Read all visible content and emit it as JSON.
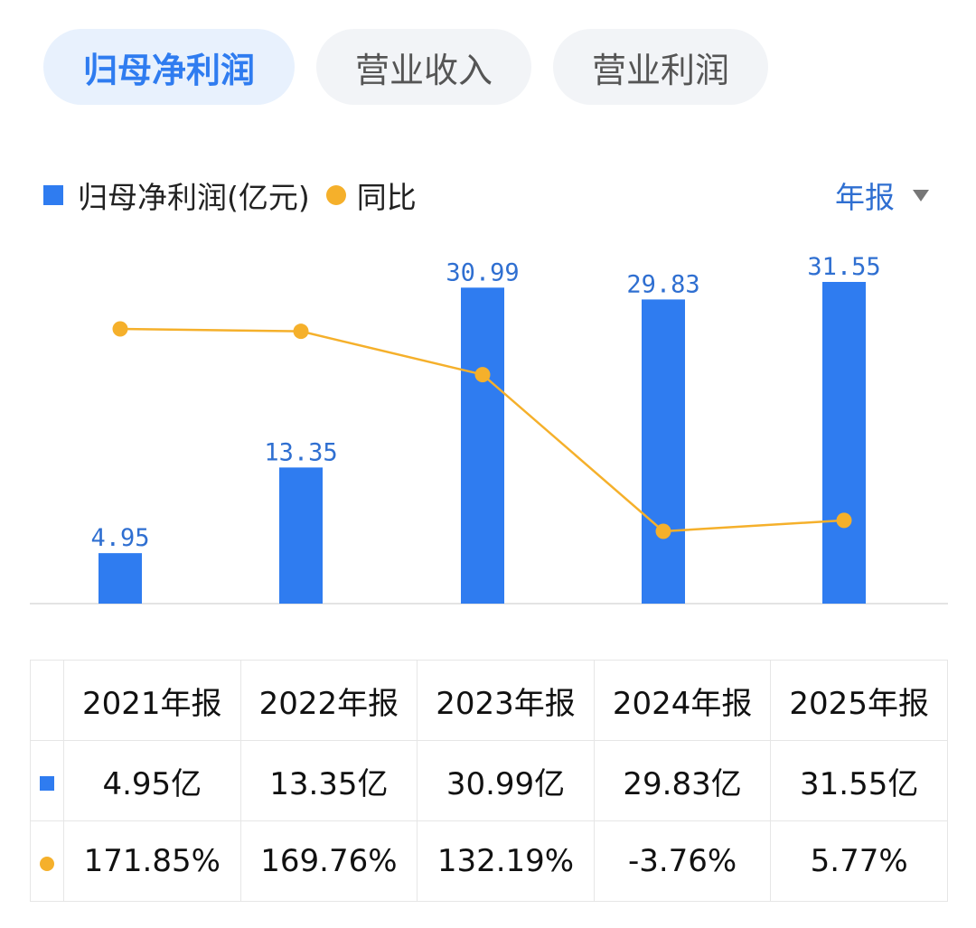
{
  "tabs": [
    {
      "label": "归母净利润",
      "active": true
    },
    {
      "label": "营业收入",
      "active": false
    },
    {
      "label": "营业利润",
      "active": false
    }
  ],
  "legend": {
    "bar_label": "归母净利润(亿元)",
    "line_label": "同比"
  },
  "period_selector": {
    "label": "年报"
  },
  "colors": {
    "bar": "#2f7cf0",
    "line": "#f5b02b",
    "positive": "#d9403a",
    "negative": "#2e9b4f"
  },
  "chart_data": {
    "type": "bar",
    "categories": [
      "2021年报",
      "2022年报",
      "2023年报",
      "2024年报",
      "2025年报"
    ],
    "series": [
      {
        "name": "归母净利润(亿元)",
        "type": "bar",
        "values": [
          4.95,
          13.35,
          30.99,
          29.83,
          31.55
        ],
        "labels": [
          "4.95",
          "13.35",
          "30.99",
          "29.83",
          "31.55"
        ]
      },
      {
        "name": "同比",
        "type": "line",
        "values": [
          171.85,
          169.76,
          132.19,
          -3.76,
          5.77
        ]
      }
    ],
    "legend_position": "top-left"
  },
  "table": {
    "headers": [
      "2021年报",
      "2022年报",
      "2023年报",
      "2024年报",
      "2025年报"
    ],
    "values": [
      "4.95亿",
      "13.35亿",
      "30.99亿",
      "29.83亿",
      "31.55亿"
    ],
    "yoy": [
      "171.85%",
      "169.76%",
      "132.19%",
      "-3.76%",
      "5.77%"
    ]
  }
}
